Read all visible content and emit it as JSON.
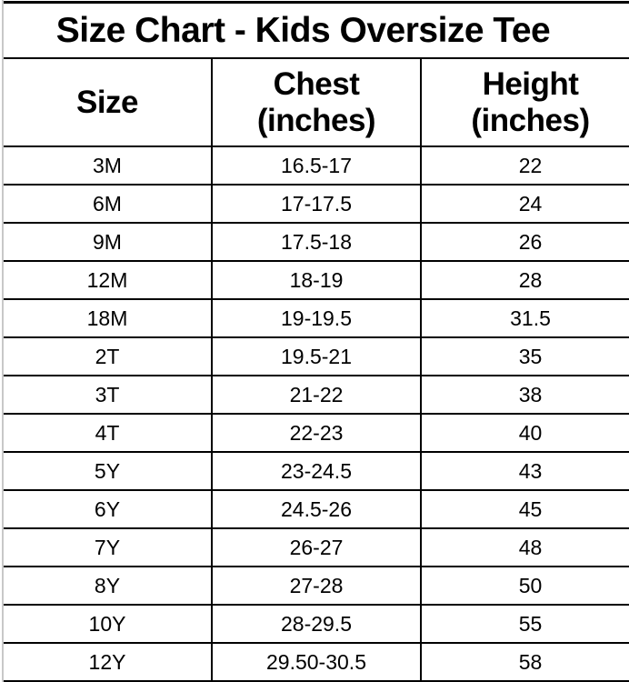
{
  "title": "Size Chart - Kids Oversize Tee",
  "headers": {
    "size": "Size",
    "chest_1": "Chest",
    "chest_2": "(inches)",
    "height_1": "Height",
    "height_2": "(inches)"
  },
  "rows": [
    {
      "size": "3M",
      "chest": "16.5-17",
      "height": "22"
    },
    {
      "size": "6M",
      "chest": "17-17.5",
      "height": "24"
    },
    {
      "size": "9M",
      "chest": "17.5-18",
      "height": "26"
    },
    {
      "size": "12M",
      "chest": "18-19",
      "height": "28"
    },
    {
      "size": "18M",
      "chest": "19-19.5",
      "height": "31.5"
    },
    {
      "size": "2T",
      "chest": "19.5-21",
      "height": "35"
    },
    {
      "size": "3T",
      "chest": "21-22",
      "height": "38"
    },
    {
      "size": "4T",
      "chest": "22-23",
      "height": "40"
    },
    {
      "size": "5Y",
      "chest": "23-24.5",
      "height": "43"
    },
    {
      "size": "6Y",
      "chest": "24.5-26",
      "height": "45"
    },
    {
      "size": "7Y",
      "chest": "26-27",
      "height": "48"
    },
    {
      "size": "8Y",
      "chest": "27-28",
      "height": "50"
    },
    {
      "size": "10Y",
      "chest": "28-29.5",
      "height": "55"
    },
    {
      "size": "12Y",
      "chest": "29.50-30.5",
      "height": "58"
    }
  ]
}
